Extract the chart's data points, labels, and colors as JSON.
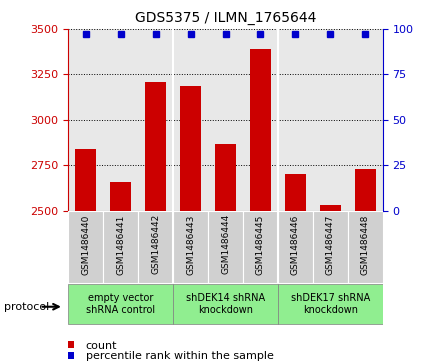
{
  "title": "GDS5375 / ILMN_1765644",
  "samples": [
    "GSM1486440",
    "GSM1486441",
    "GSM1486442",
    "GSM1486443",
    "GSM1486444",
    "GSM1486445",
    "GSM1486446",
    "GSM1486447",
    "GSM1486448"
  ],
  "counts": [
    2840,
    2660,
    3210,
    3185,
    2865,
    3390,
    2700,
    2530,
    2730
  ],
  "percentiles": [
    97,
    97,
    97,
    97,
    97,
    97,
    97,
    97,
    97
  ],
  "ylim_left": [
    2500,
    3500
  ],
  "ylim_right": [
    0,
    100
  ],
  "yticks_left": [
    2500,
    2750,
    3000,
    3250,
    3500
  ],
  "yticks_right": [
    0,
    25,
    50,
    75,
    100
  ],
  "groups": [
    {
      "label": "empty vector\nshRNA control",
      "cols": [
        0,
        1,
        2
      ],
      "color": "#90EE90"
    },
    {
      "label": "shDEK14 shRNA\nknockdown",
      "cols": [
        3,
        4,
        5
      ],
      "color": "#90EE90"
    },
    {
      "label": "shDEK17 shRNA\nknockdown",
      "cols": [
        6,
        7,
        8
      ],
      "color": "#90EE90"
    }
  ],
  "bar_color": "#CC0000",
  "dot_color": "#0000CC",
  "plot_bg": "#e8e8e8",
  "fig_bg": "#ffffff",
  "left_axis_color": "#CC0000",
  "right_axis_color": "#0000CC",
  "protocol_label": "protocol",
  "legend_count_label": "count",
  "legend_percentile_label": "percentile rank within the sample"
}
